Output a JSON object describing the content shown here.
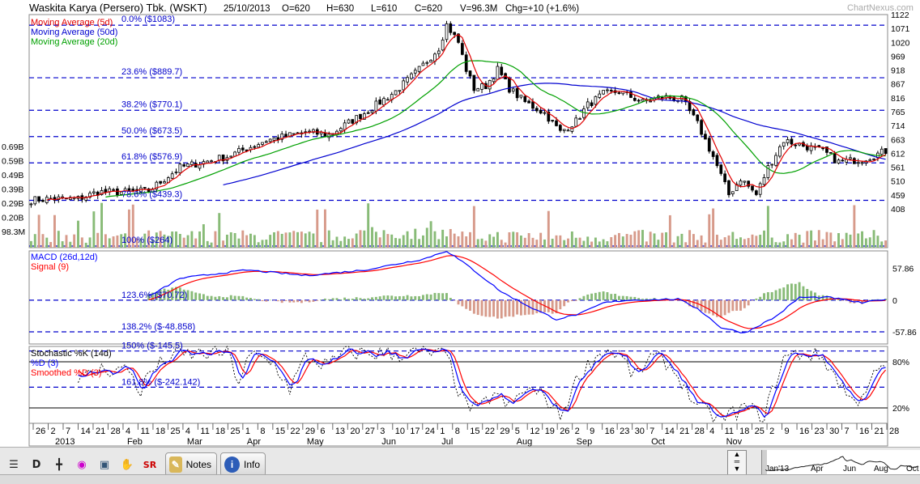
{
  "header": {
    "name": "Waskita Karya (Persero) Tbk. (WSKT)",
    "date": "25/10/2013",
    "open": "O=620",
    "high": "H=630",
    "low": "L=610",
    "close": "C=620",
    "volume": "V=96.3M",
    "change": "Chg=+10 (+1.6%)",
    "brand": "ChartNexus.com"
  },
  "colors": {
    "up": "#000000",
    "down": "#000000",
    "ma5": "#e00000",
    "ma20": "#00a000",
    "ma50": "#0000d0",
    "fib": "#0000cc",
    "vol_up": "#88bb77",
    "vol_down": "#d79a8a",
    "macd": "#0000ff",
    "signal": "#ff0000",
    "stoch_k": "#0000ff",
    "stoch_d": "#ff0000"
  },
  "chart_data": [
    {
      "type": "candlestick",
      "panel": "price",
      "legend": [
        "Moving Average (5d)",
        "Moving Average (50d)",
        "Moving Average (20d)"
      ],
      "y_ticks": [
        "1122",
        "1071",
        "1020",
        "969",
        "918",
        "867",
        "816",
        "765",
        "714",
        "663",
        "612",
        "561",
        "510",
        "459",
        "408"
      ],
      "left_ticks": [
        "0.69B",
        "0.59B",
        "0.49B",
        "0.39B",
        "0.29B",
        "0.20B",
        "98.3M"
      ],
      "ylim": [
        408,
        1122
      ],
      "anchors": [
        [
          0,
          440
        ],
        [
          5,
          445
        ],
        [
          12,
          445
        ],
        [
          17,
          470
        ],
        [
          24,
          470
        ],
        [
          30,
          475
        ],
        [
          38,
          560
        ],
        [
          50,
          600
        ],
        [
          60,
          660
        ],
        [
          70,
          690
        ],
        [
          76,
          680
        ],
        [
          85,
          760
        ],
        [
          93,
          840
        ],
        [
          99,
          920
        ],
        [
          104,
          1000
        ],
        [
          106,
          1085
        ],
        [
          109,
          1020
        ],
        [
          111,
          920
        ],
        [
          113,
          850
        ],
        [
          116,
          860
        ],
        [
          119,
          920
        ],
        [
          122,
          850
        ],
        [
          126,
          800
        ],
        [
          131,
          760
        ],
        [
          135,
          690
        ],
        [
          139,
          730
        ],
        [
          142,
          790
        ],
        [
          146,
          830
        ],
        [
          150,
          840
        ],
        [
          156,
          800
        ],
        [
          161,
          820
        ],
        [
          166,
          810
        ],
        [
          170,
          720
        ],
        [
          174,
          600
        ],
        [
          178,
          460
        ],
        [
          181,
          520
        ],
        [
          185,
          460
        ],
        [
          188,
          560
        ],
        [
          192,
          660
        ],
        [
          197,
          640
        ],
        [
          202,
          620
        ],
        [
          206,
          580
        ],
        [
          212,
          590
        ],
        [
          218,
          620
        ]
      ],
      "fibonacci": [
        {
          "label": "0.0%  ($1083)",
          "value": 1083
        },
        {
          "label": "23.6%  ($889.7)",
          "value": 889.7
        },
        {
          "label": "38.2%  ($770.1)",
          "value": 770.1
        },
        {
          "label": "50.0%  ($673.5)",
          "value": 673.5
        },
        {
          "label": "61.8%  ($576.9)",
          "value": 576.9
        },
        {
          "label": "78.6%  ($439.3)",
          "value": 439.3
        },
        {
          "label": "100%  ($264)",
          "value": 264
        }
      ]
    },
    {
      "type": "line",
      "panel": "macd",
      "series": [
        {
          "name": "MACD (26d,12d)"
        },
        {
          "name": "Signal (9)"
        }
      ],
      "y_ticks": [
        "57.86",
        "0",
        "-57.86"
      ],
      "ylim": [
        -80,
        90
      ],
      "anchors": [
        [
          0,
          0
        ],
        [
          28,
          -2
        ],
        [
          38,
          40
        ],
        [
          55,
          55
        ],
        [
          70,
          45
        ],
        [
          85,
          55
        ],
        [
          100,
          75
        ],
        [
          106,
          90
        ],
        [
          112,
          60
        ],
        [
          120,
          15
        ],
        [
          128,
          -15
        ],
        [
          134,
          -35
        ],
        [
          140,
          -25
        ],
        [
          146,
          -5
        ],
        [
          152,
          0
        ],
        [
          165,
          2
        ],
        [
          170,
          -15
        ],
        [
          176,
          -50
        ],
        [
          182,
          -60
        ],
        [
          190,
          -30
        ],
        [
          196,
          5
        ],
        [
          204,
          5
        ],
        [
          212,
          -5
        ],
        [
          218,
          2
        ]
      ],
      "fibonacci": [
        {
          "label": "123.6%  ($70.72)",
          "value": 0
        },
        {
          "label": "138.2%  ($-48.858)",
          "value": -57.86
        }
      ]
    },
    {
      "type": "line",
      "panel": "stochastic",
      "series": [
        {
          "name": "Stochastic %K (14d)"
        },
        {
          "name": "%D (3)"
        },
        {
          "name": "Smoothed %D (3)"
        }
      ],
      "y_ticks": [
        "80%",
        "20%"
      ],
      "ylim": [
        0,
        100
      ],
      "anchors": [
        [
          12,
          55
        ],
        [
          18,
          70
        ],
        [
          25,
          70
        ],
        [
          28,
          40
        ],
        [
          30,
          65
        ],
        [
          36,
          88
        ],
        [
          50,
          92
        ],
        [
          53,
          55
        ],
        [
          56,
          88
        ],
        [
          62,
          78
        ],
        [
          66,
          45
        ],
        [
          70,
          85
        ],
        [
          76,
          75
        ],
        [
          80,
          92
        ],
        [
          94,
          90
        ],
        [
          100,
          92
        ],
        [
          106,
          88
        ],
        [
          110,
          30
        ],
        [
          114,
          15
        ],
        [
          118,
          40
        ],
        [
          122,
          20
        ],
        [
          126,
          45
        ],
        [
          131,
          35
        ],
        [
          135,
          10
        ],
        [
          140,
          65
        ],
        [
          146,
          95
        ],
        [
          150,
          90
        ],
        [
          154,
          60
        ],
        [
          158,
          85
        ],
        [
          162,
          80
        ],
        [
          166,
          55
        ],
        [
          170,
          20
        ],
        [
          176,
          5
        ],
        [
          182,
          20
        ],
        [
          187,
          10
        ],
        [
          192,
          85
        ],
        [
          197,
          92
        ],
        [
          202,
          85
        ],
        [
          206,
          55
        ],
        [
          210,
          25
        ],
        [
          214,
          55
        ],
        [
          218,
          75
        ]
      ],
      "fibonacci": [
        {
          "label": "150%  ($-145.5)",
          "value": 94
        },
        {
          "label": "161.8%  ($-242.142)",
          "value": 47
        }
      ]
    }
  ],
  "x_axis": {
    "days": [
      "26",
      "2",
      "7",
      "14",
      "21",
      "28",
      "4",
      "11",
      "18",
      "25",
      "4",
      "11",
      "18",
      "25",
      "1",
      "8",
      "15",
      "22",
      "29",
      "6",
      "13",
      "20",
      "27",
      "3",
      "10",
      "17",
      "24",
      "1",
      "8",
      "15",
      "22",
      "29",
      "5",
      "12",
      "19",
      "26",
      "2",
      "9",
      "16",
      "23",
      "30",
      "7",
      "14",
      "21",
      "28",
      "4",
      "11",
      "18",
      "25",
      "2",
      "9",
      "16",
      "23",
      "30",
      "7",
      "16",
      "21",
      "28"
    ],
    "months": [
      "2013",
      "Feb",
      "Mar",
      "Apr",
      "May",
      "Jun",
      "Jul",
      "Aug",
      "Sep",
      "Oct",
      "Nov"
    ]
  },
  "toolbar": {
    "notes_label": "Notes",
    "info_label": "Info",
    "d_label": "D",
    "sr_label": "SR",
    "mini_labels": [
      "Jan'13",
      "Apr",
      "Jun",
      "Aug",
      "Oct"
    ]
  }
}
